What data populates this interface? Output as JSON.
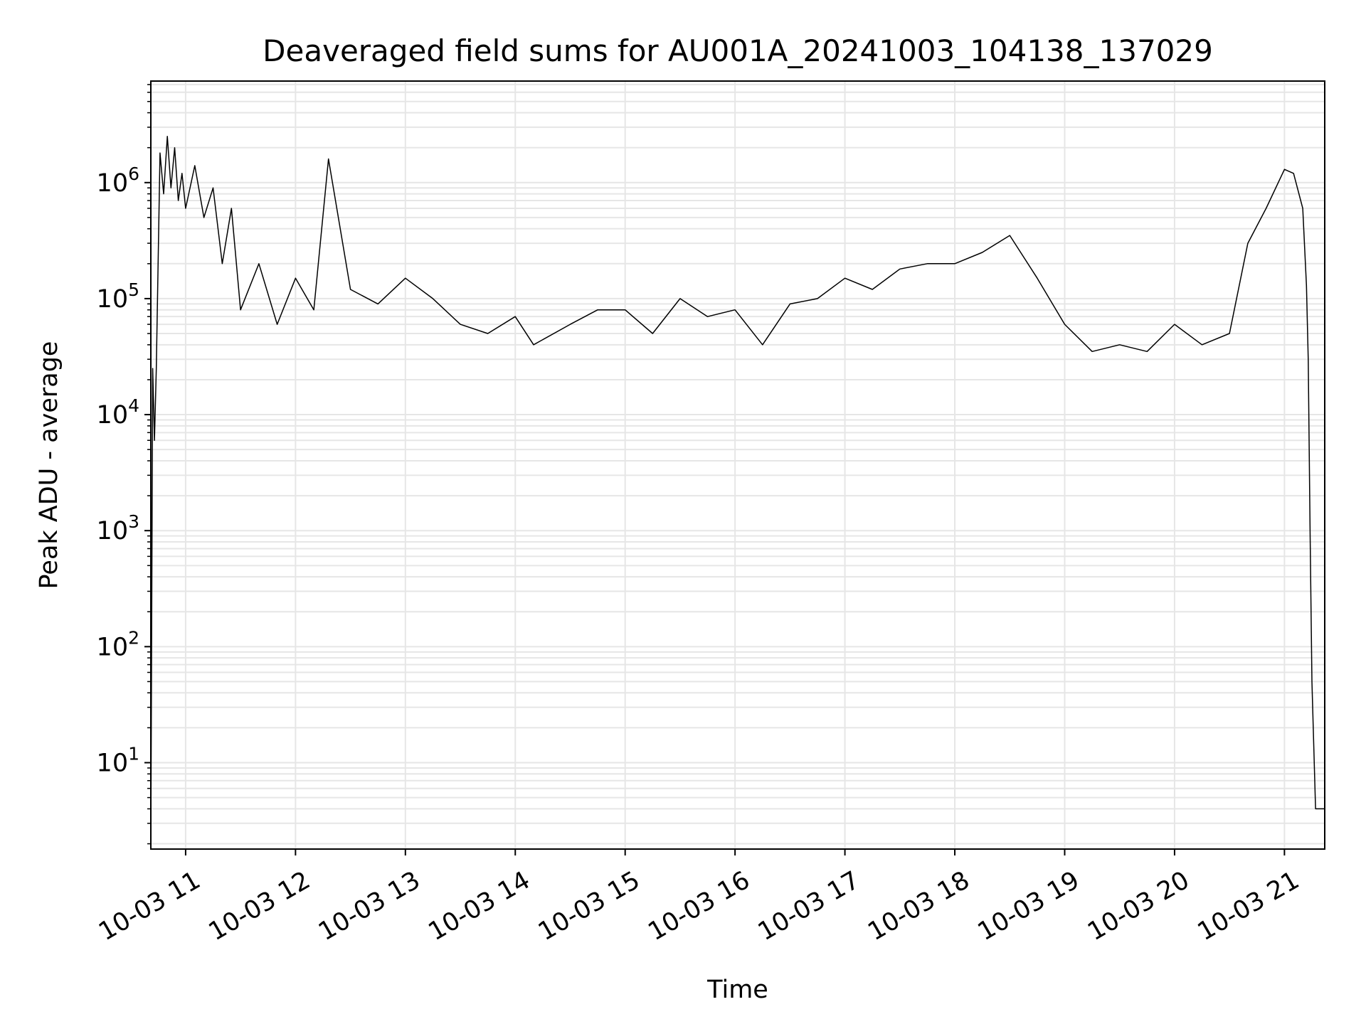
{
  "chart_data": {
    "type": "line",
    "title": "Deaveraged field sums for AU001A_20241003_104138_137029",
    "xlabel": "Time",
    "ylabel": "Peak ADU - average",
    "yscale": "log",
    "ylim": [
      1.8,
      7500000
    ],
    "xlim": [
      "10-03 10:41",
      "10-03 21:22"
    ],
    "grid": {
      "major": true,
      "minor": true
    },
    "line_color": "#000000",
    "grid_color": "#e6e6e6",
    "x_ticks": [
      {
        "time": "10-03 11:00",
        "label": "10-03 11"
      },
      {
        "time": "10-03 12:00",
        "label": "10-03 12"
      },
      {
        "time": "10-03 13:00",
        "label": "10-03 13"
      },
      {
        "time": "10-03 14:00",
        "label": "10-03 14"
      },
      {
        "time": "10-03 15:00",
        "label": "10-03 15"
      },
      {
        "time": "10-03 16:00",
        "label": "10-03 16"
      },
      {
        "time": "10-03 17:00",
        "label": "10-03 17"
      },
      {
        "time": "10-03 18:00",
        "label": "10-03 18"
      },
      {
        "time": "10-03 19:00",
        "label": "10-03 19"
      },
      {
        "time": "10-03 20:00",
        "label": "10-03 20"
      },
      {
        "time": "10-03 21:00",
        "label": "10-03 21"
      }
    ],
    "y_ticks": [
      {
        "value": 10,
        "base": "10",
        "exp": "1"
      },
      {
        "value": 100,
        "base": "10",
        "exp": "2"
      },
      {
        "value": 1000,
        "base": "10",
        "exp": "3"
      },
      {
        "value": 10000,
        "base": "10",
        "exp": "4"
      },
      {
        "value": 100000,
        "base": "10",
        "exp": "5"
      },
      {
        "value": 1000000,
        "base": "10",
        "exp": "6"
      }
    ],
    "series": [
      {
        "x": [
          "10-03 10:41",
          "10-03 10:42",
          "10-03 10:43",
          "10-03 10:44",
          "10-03 10:46",
          "10-03 10:48",
          "10-03 10:50",
          "10-03 10:52",
          "10-03 10:54",
          "10-03 10:56",
          "10-03 10:58",
          "10-03 11:00",
          "10-03 11:05",
          "10-03 11:10",
          "10-03 11:15",
          "10-03 11:20",
          "10-03 11:25",
          "10-03 11:30",
          "10-03 11:40",
          "10-03 11:50",
          "10-03 12:00",
          "10-03 12:10",
          "10-03 12:18",
          "10-03 12:30",
          "10-03 12:45",
          "10-03 13:00",
          "10-03 13:15",
          "10-03 13:30",
          "10-03 13:45",
          "10-03 14:00",
          "10-03 14:10",
          "10-03 14:30",
          "10-03 14:45",
          "10-03 15:00",
          "10-03 15:15",
          "10-03 15:30",
          "10-03 15:45",
          "10-03 16:00",
          "10-03 16:15",
          "10-03 16:30",
          "10-03 16:45",
          "10-03 17:00",
          "10-03 17:15",
          "10-03 17:30",
          "10-03 17:45",
          "10-03 18:00",
          "10-03 18:15",
          "10-03 18:30",
          "10-03 18:45",
          "10-03 19:00",
          "10-03 19:15",
          "10-03 19:30",
          "10-03 19:45",
          "10-03 20:00",
          "10-03 20:15",
          "10-03 20:30",
          "10-03 20:40",
          "10-03 20:50",
          "10-03 21:00",
          "10-03 21:05",
          "10-03 21:10",
          "10-03 21:12",
          "10-03 21:13",
          "10-03 21:14",
          "10-03 21:15",
          "10-03 21:17",
          "10-03 21:19",
          "10-03 21:22"
        ],
        "y": [
          2,
          25000,
          6000,
          25000,
          1800000,
          800000,
          2500000,
          900000,
          2000000,
          700000,
          1200000,
          600000,
          1400000,
          500000,
          900000,
          200000,
          600000,
          80000,
          200000,
          60000,
          150000,
          80000,
          1600000,
          120000,
          90000,
          150000,
          100000,
          60000,
          50000,
          70000,
          40000,
          60000,
          80000,
          80000,
          50000,
          100000,
          70000,
          80000,
          40000,
          90000,
          100000,
          150000,
          120000,
          180000,
          200000,
          200000,
          250000,
          350000,
          150000,
          60000,
          35000,
          40000,
          35000,
          60000,
          40000,
          50000,
          300000,
          600000,
          1300000,
          1200000,
          600000,
          130000,
          30000,
          1000,
          50,
          4,
          4,
          4
        ]
      }
    ]
  }
}
